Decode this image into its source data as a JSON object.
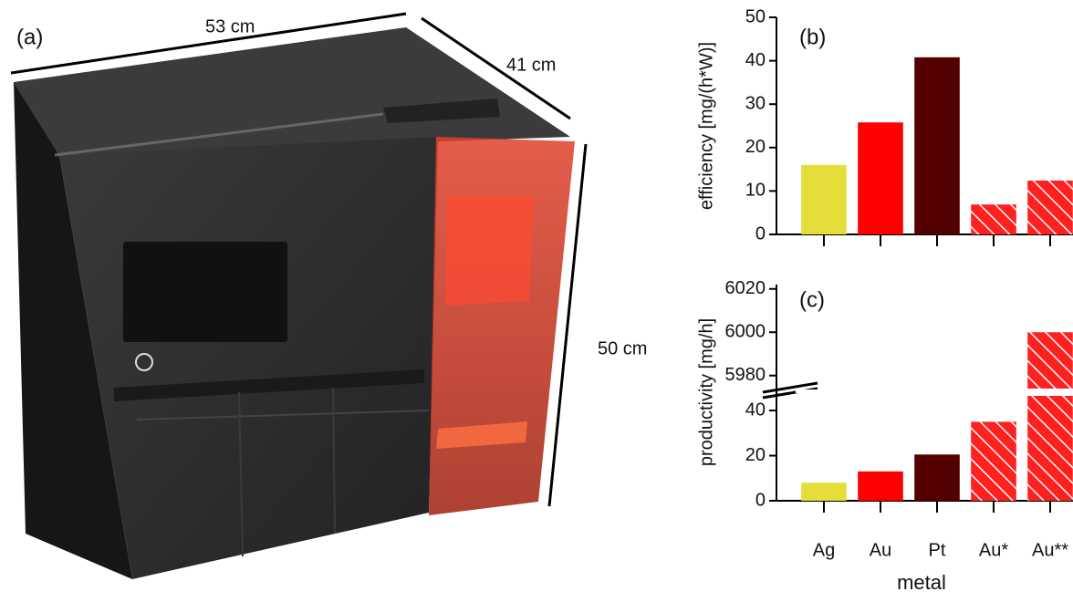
{
  "panel_a": {
    "label": "(a)",
    "dimensions": [
      "53 cm",
      "41 cm",
      "50 cm"
    ]
  },
  "chart_data": [
    {
      "type": "bar",
      "panel_label": "(b)",
      "ylabel": "efficiency [mg/(h*W)]",
      "categories": [
        null,
        null,
        null,
        null,
        null
      ],
      "values": [
        16,
        25.8,
        40.8,
        6.9,
        12.4
      ],
      "colors": [
        "#e5dd3a",
        "#ff0000",
        "#550000",
        "#ff2020",
        "#ff2020"
      ],
      "hatched": [
        false,
        false,
        false,
        true,
        true
      ],
      "ylim": [
        0,
        50
      ],
      "yticks": [
        0,
        10,
        20,
        30,
        40,
        50
      ]
    },
    {
      "type": "bar",
      "panel_label": "(c)",
      "ylabel": "productivity [mg/h]",
      "xlabel": "metal",
      "categories": [
        "Ag",
        "Au",
        "Pt",
        "Au*",
        "Au**"
      ],
      "values": [
        8,
        13,
        20.5,
        35,
        6000
      ],
      "colors": [
        "#e5dd3a",
        "#ff0000",
        "#550000",
        "#ff2020",
        "#ff2020"
      ],
      "hatched": [
        false,
        false,
        false,
        true,
        true
      ],
      "axis_break": true,
      "ylim": [
        0,
        46.5
      ],
      "ylim_upper": [
        5974,
        6022
      ],
      "yticks": [
        0,
        20,
        40,
        5980,
        6000,
        6020
      ]
    }
  ]
}
